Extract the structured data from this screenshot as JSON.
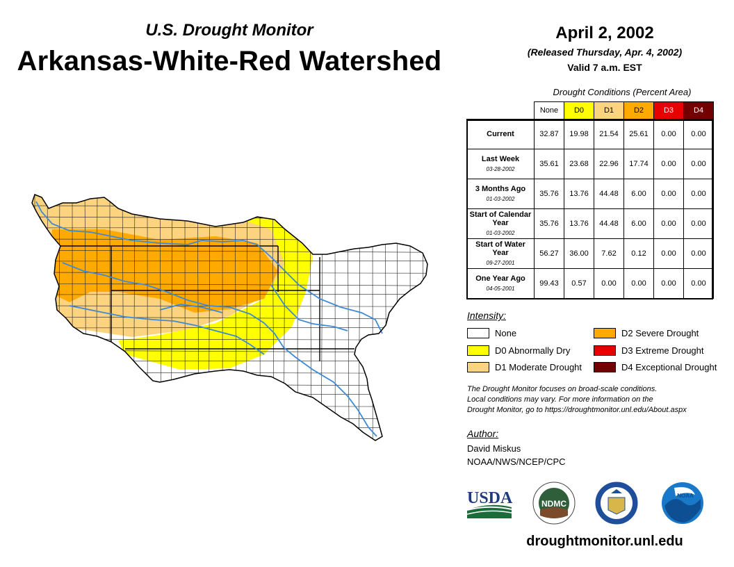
{
  "header": {
    "subtitle": "U.S. Drought Monitor",
    "title": "Arkansas-White-Red Watershed",
    "date": "April 2, 2002",
    "released": "(Released Thursday, Apr. 4, 2002)",
    "valid": "Valid 7 a.m. EST"
  },
  "table": {
    "caption": "Drought Conditions (Percent Area)",
    "columns": [
      "None",
      "D0",
      "D1",
      "D2",
      "D3",
      "D4"
    ],
    "column_colors": [
      "#ffffff",
      "#ffff00",
      "#fcd37f",
      "#ffaa00",
      "#e60000",
      "#730000"
    ],
    "rows": [
      {
        "label": "Current",
        "date": "",
        "values": [
          "32.87",
          "19.98",
          "21.54",
          "25.61",
          "0.00",
          "0.00"
        ]
      },
      {
        "label": "Last Week",
        "date": "03-28-2002",
        "values": [
          "35.61",
          "23.68",
          "22.96",
          "17.74",
          "0.00",
          "0.00"
        ]
      },
      {
        "label": "3 Months Ago",
        "date": "01-03-2002",
        "values": [
          "35.76",
          "13.76",
          "44.48",
          "6.00",
          "0.00",
          "0.00"
        ]
      },
      {
        "label": "Start of Calendar Year",
        "date": "01-03-2002",
        "values": [
          "35.76",
          "13.76",
          "44.48",
          "6.00",
          "0.00",
          "0.00"
        ]
      },
      {
        "label": "Start of Water Year",
        "date": "09-27-2001",
        "values": [
          "56.27",
          "36.00",
          "7.62",
          "0.12",
          "0.00",
          "0.00"
        ]
      },
      {
        "label": "One Year Ago",
        "date": "04-05-2001",
        "values": [
          "99.43",
          "0.57",
          "0.00",
          "0.00",
          "0.00",
          "0.00"
        ]
      }
    ]
  },
  "legend": {
    "title": "Intensity:",
    "items": [
      {
        "label": "None",
        "color": "#ffffff"
      },
      {
        "label": "D0 Abnormally Dry",
        "color": "#ffff00"
      },
      {
        "label": "D1 Moderate Drought",
        "color": "#fcd37f"
      },
      {
        "label": "D2 Severe Drought",
        "color": "#ffaa00"
      },
      {
        "label": "D3 Extreme Drought",
        "color": "#e60000"
      },
      {
        "label": "D4 Exceptional Drought",
        "color": "#730000"
      }
    ]
  },
  "note": {
    "line1": "The Drought Monitor focuses on broad-scale conditions.",
    "line2": "Local conditions may vary. For more information on the",
    "line3": "Drought Monitor, go to https://droughtmonitor.unl.edu/About.aspx"
  },
  "author": {
    "title": "Author:",
    "name": "David Miskus",
    "org": "NOAA/NWS/NCEP/CPC"
  },
  "logos": {
    "usda": "USDA",
    "ndmc": "NDMC",
    "noaa": "NOAA"
  },
  "website": "droughtmonitor.unl.edu",
  "colors": {
    "river": "#3c8ad6",
    "county_line": "#222222"
  }
}
